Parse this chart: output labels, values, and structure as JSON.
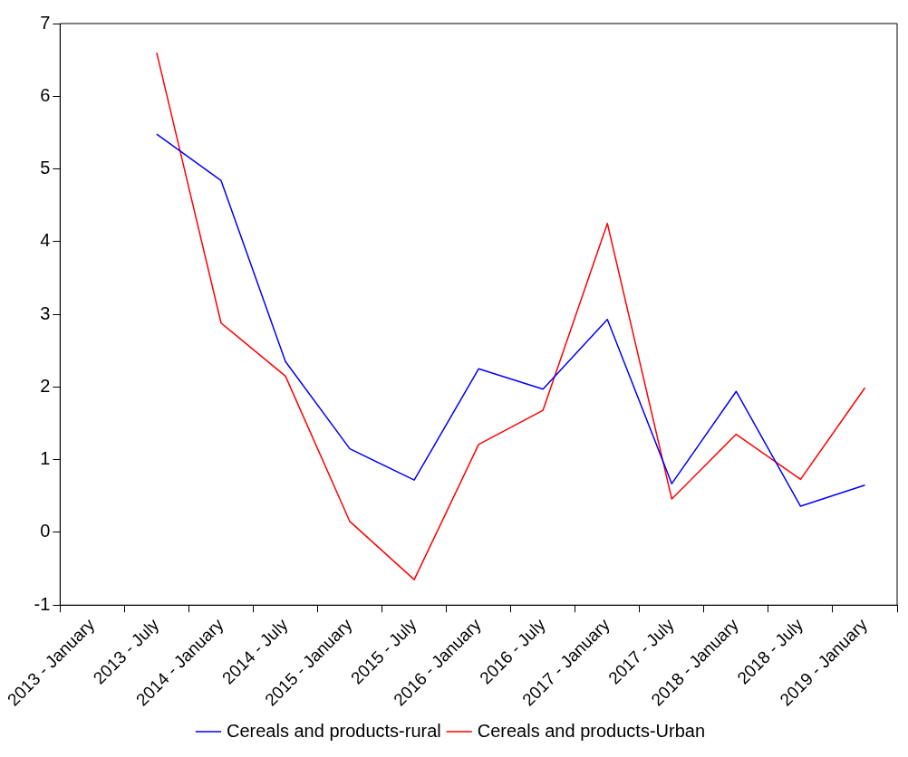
{
  "chart_data": {
    "type": "line",
    "categories": [
      "2013 - January",
      "2013 - July",
      "2014 - January",
      "2014 - July",
      "2015 - January",
      "2015 - July",
      "2016 - January",
      "2016 - July",
      "2017 - January",
      "2017 - July",
      "2018 - January",
      "2018 - July",
      "2019 - January"
    ],
    "series": [
      {
        "name": "Cereals and products-rural",
        "color": "#0000ff",
        "values": [
          null,
          5.48,
          4.84,
          2.35,
          1.15,
          0.72,
          2.25,
          1.97,
          2.93,
          0.67,
          1.94,
          0.36,
          0.65
        ]
      },
      {
        "name": "Cereals and products-Urban",
        "color": "#ff0000",
        "values": [
          null,
          6.6,
          2.88,
          2.15,
          0.15,
          -0.65,
          1.21,
          1.68,
          4.25,
          0.46,
          1.35,
          0.73,
          1.99
        ]
      }
    ],
    "ylim": [
      -1,
      7
    ],
    "yticks": [
      -1,
      0,
      1,
      2,
      3,
      4,
      5,
      6,
      7
    ],
    "grid": false,
    "legend": "bottom",
    "marker": "none",
    "line_style": "solid"
  }
}
